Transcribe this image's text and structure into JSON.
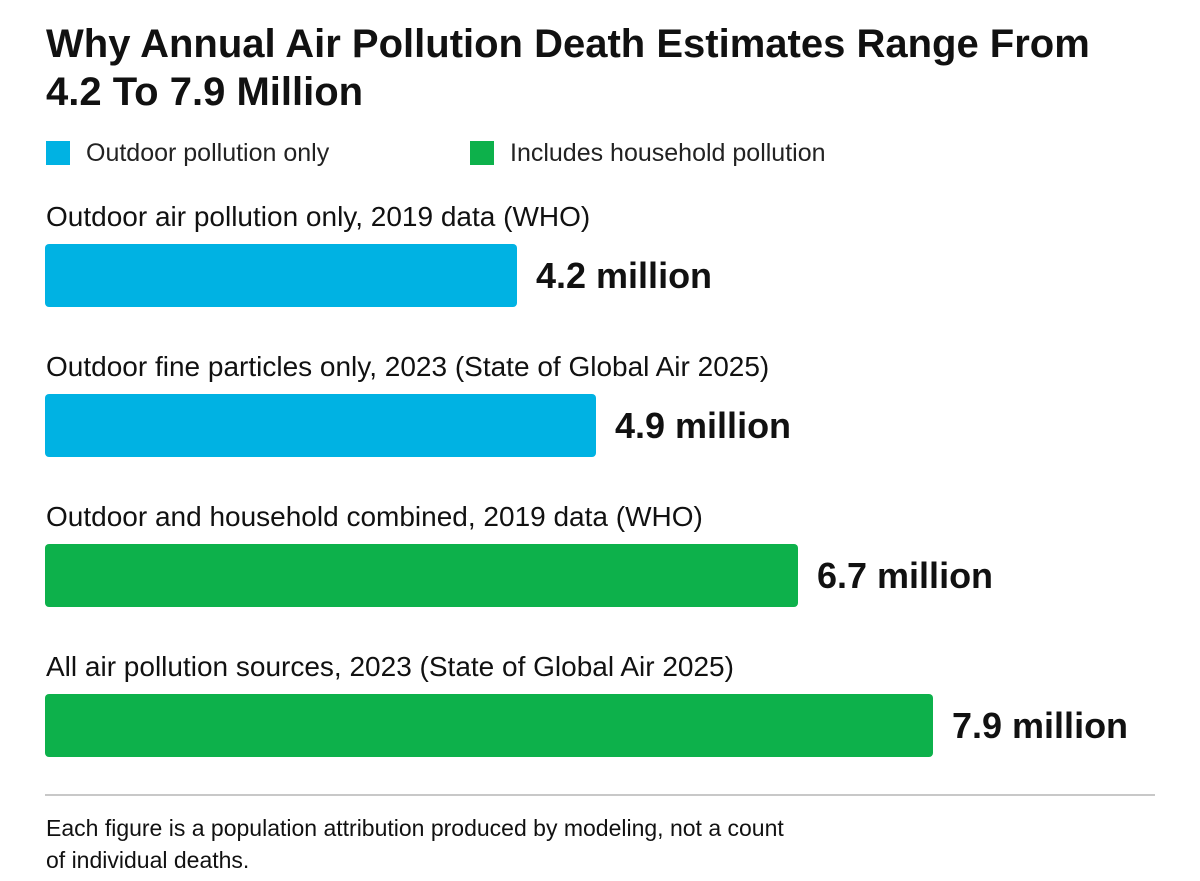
{
  "chart_data": {
    "type": "bar",
    "orientation": "horizontal",
    "title": "Why Annual Air Pollution Death Estimates Range From 4.2 To 7.9 Million",
    "legend": [
      {
        "label": "Outdoor pollution only",
        "color": "#00b2e3"
      },
      {
        "label": "Includes household pollution",
        "color": "#0db14b"
      }
    ],
    "categories": [
      "Outdoor air pollution only, 2019 data (WHO)",
      "Outdoor fine particles only, 2023 (State of Global Air 2025)",
      "Outdoor and household combined, 2019 data (WHO)",
      "All air pollution sources, 2023 (State of Global Air 2025)"
    ],
    "values": [
      4.2,
      4.9,
      6.7,
      7.9
    ],
    "value_labels": [
      "4.2 million",
      "4.9 million",
      "6.7 million",
      "7.9 million"
    ],
    "series_group": [
      "outdoor",
      "outdoor",
      "household",
      "household"
    ],
    "xlim": [
      0,
      7.9
    ],
    "grid": false,
    "legend_position": "top-left"
  },
  "footnote": "Each figure is a population attribution produced by modeling, not a count of individual deaths."
}
